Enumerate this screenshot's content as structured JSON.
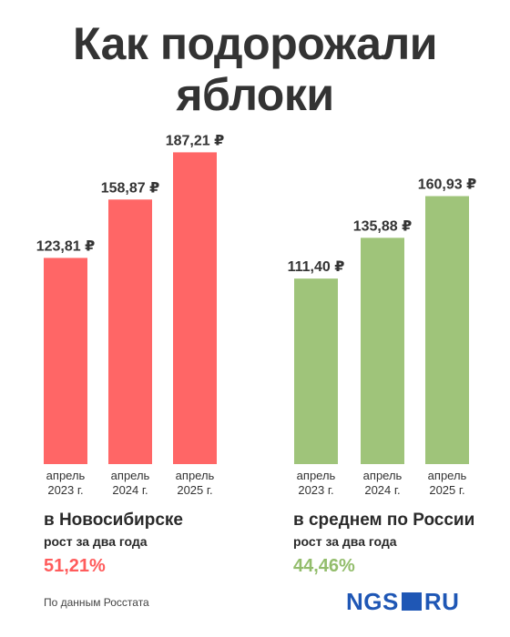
{
  "title_line1": "Как подорожали",
  "title_line2": "яблоки",
  "chart_data": [
    {
      "type": "bar",
      "categories": [
        "апрель|2023 г.",
        "апрель|2024 г.",
        "апрель|2025 г."
      ],
      "values": [
        123.81,
        158.87,
        187.21
      ],
      "value_labels": [
        "123,81 ₽",
        "158,87 ₽",
        "187,21 ₽"
      ],
      "color": "#ff6666",
      "region": "в Новосибирске",
      "growth_label": "рост за два года",
      "growth_value": "51,21%",
      "growth_color": "#ff5c5c"
    },
    {
      "type": "bar",
      "categories": [
        "апрель|2023 г.",
        "апрель|2024 г.",
        "апрель|2025 г."
      ],
      "values": [
        111.4,
        135.88,
        160.93
      ],
      "value_labels": [
        "111,40 ₽",
        "135,88 ₽",
        "160,93 ₽"
      ],
      "color": "#9fc47a",
      "region": "в среднем по России",
      "growth_label": "рост за два года",
      "growth_value": "44,46%",
      "growth_color": "#93bd6c"
    }
  ],
  "source": "По данным Росстата",
  "logo": {
    "left": "NGS",
    "right": "RU"
  }
}
